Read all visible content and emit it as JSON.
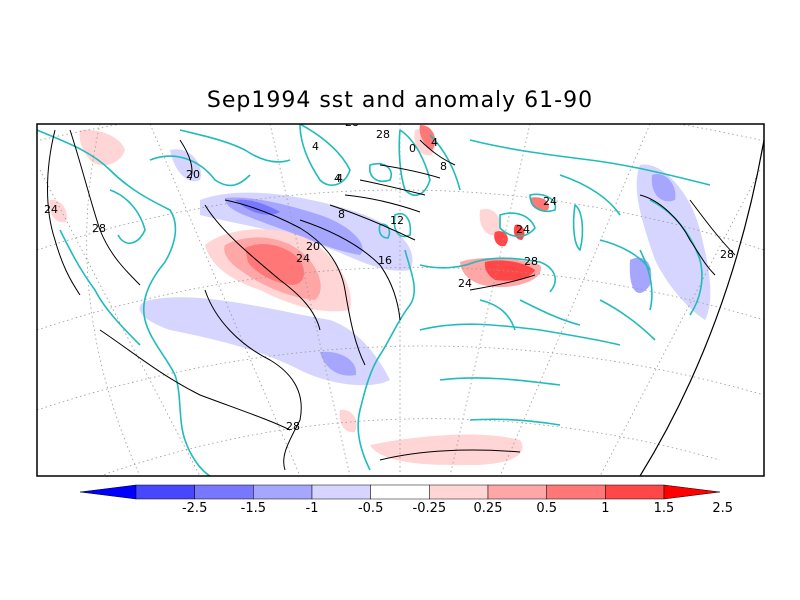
{
  "title": "Sep1994 sst and anomaly 61-90",
  "contour_labels": [
    "24",
    "28",
    "20",
    "4",
    "0",
    "4",
    "8",
    "4",
    "8",
    "12",
    "16",
    "20",
    "24",
    "24",
    "24",
    "28",
    "28",
    "24",
    "28",
    "4",
    "28",
    "28"
  ],
  "colorbar": {
    "labels": [
      "-2.5",
      "-1.5",
      "-1",
      "-0.5",
      "-0.25",
      "0.25",
      "0.5",
      "1",
      "1.5",
      "2.5"
    ],
    "colors": [
      "#0000ff",
      "#4747ff",
      "#7777ff",
      "#a6a6ff",
      "#d5d5ff",
      "#ffffff",
      "#ffd5d5",
      "#ffa6a6",
      "#ff7777",
      "#ff4747",
      "#ff0000"
    ]
  },
  "colors": {
    "coastline": "#22bbbb",
    "graticule": "#999999",
    "contour": "#000000"
  }
}
